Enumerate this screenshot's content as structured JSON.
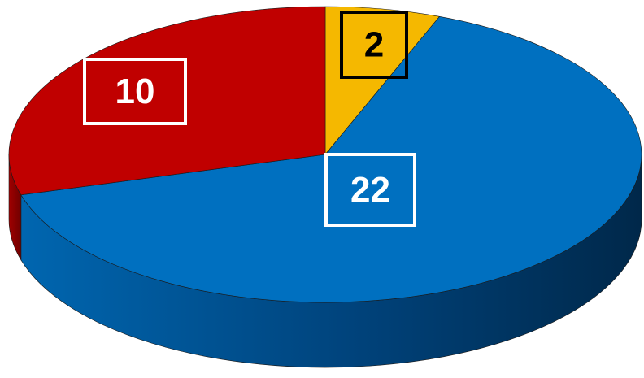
{
  "chart_data": {
    "type": "pie",
    "values": [
      2,
      22,
      10
    ],
    "colors": [
      "#f5b800",
      "#0070c0",
      "#c00000"
    ]
  }
}
